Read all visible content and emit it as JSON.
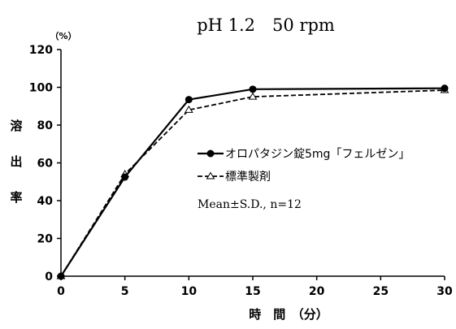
{
  "chart_data": {
    "type": "line",
    "title": "pH 1.2　50 rpm",
    "xlabel": "時　間　（分）",
    "ylabel": "溶出率",
    "yunit": "（%）",
    "x": [
      0,
      5,
      10,
      15,
      30
    ],
    "xlim": [
      0,
      30
    ],
    "xticks": [
      0,
      5,
      10,
      15,
      20,
      25,
      30
    ],
    "ylim": [
      0,
      120
    ],
    "yticks": [
      0,
      20,
      40,
      60,
      80,
      100,
      120
    ],
    "grid": false,
    "legend_position": "right",
    "series": [
      {
        "name": "オロパタジン錠5mg「フェルゼン」",
        "values": [
          0,
          52.5,
          93.5,
          99,
          99.5
        ],
        "marker": "filled-circle",
        "line": "solid",
        "color": "#000000"
      },
      {
        "name": "標準製剤",
        "values": [
          0,
          54,
          88,
          95,
          98.5
        ],
        "marker": "open-triangle",
        "line": "dashed",
        "color": "#000000"
      }
    ],
    "annotation": "Mean±S.D., n=12"
  }
}
